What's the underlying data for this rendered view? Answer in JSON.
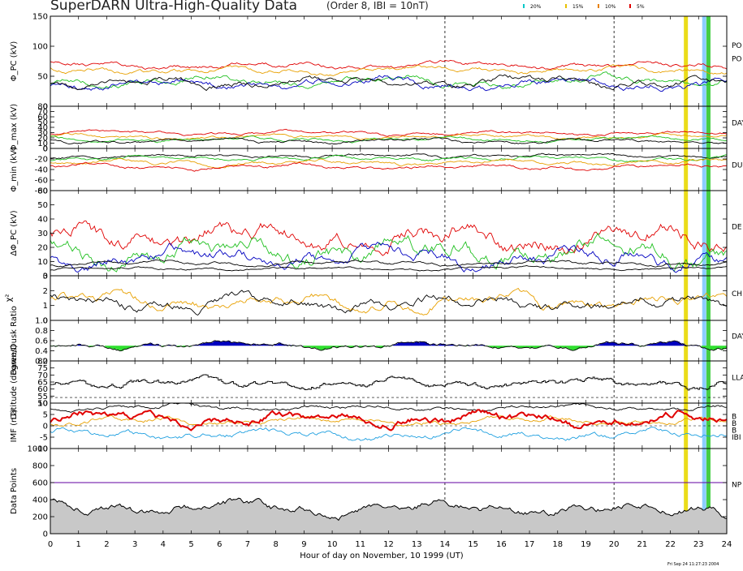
{
  "header": {
    "title": "SuperDARN Ultra-High-Quality Data",
    "subtitle": "(Order 8, IBI = 10nT)",
    "legend": [
      {
        "label": "20%",
        "color": "#00c8c8"
      },
      {
        "label": "15%",
        "color": "#e8c000"
      },
      {
        "label": "10%",
        "color": "#e88000"
      },
      {
        "label": "5%",
        "color": "#e00000"
      }
    ]
  },
  "footer": {
    "xlabel": "Hour of day on November, 10 1999 (UT)",
    "stamp": "Fri Sep 24 11:27:23 2004"
  },
  "chart_data": {
    "type": "line",
    "x_range": [
      0,
      24
    ],
    "x_ticks": [
      "0",
      "1",
      "2",
      "3",
      "4",
      "5",
      "6",
      "7",
      "8",
      "9",
      "10",
      "11",
      "12",
      "13",
      "14",
      "15",
      "16",
      "17",
      "18",
      "19",
      "20",
      "21",
      "22",
      "23",
      "24"
    ],
    "dashed_hours": [
      14,
      20
    ],
    "highlights": [
      {
        "hour": 22.55,
        "color": "#e8d800"
      },
      {
        "hour": 23.2,
        "color": "#7ec8ff"
      },
      {
        "hour": 23.35,
        "color": "#30c830"
      }
    ],
    "panels": [
      {
        "id": "phi-pc",
        "ylabel": "Φ_PC (kV)",
        "ylim": [
          0,
          150
        ],
        "yticks": [
          "0",
          "50",
          "100",
          "150"
        ],
        "right": [
          "PO",
          "PO"
        ],
        "series": [
          {
            "color": "#e00000",
            "base": 68,
            "amp": 7,
            "seed": 1
          },
          {
            "color": "#e8a000",
            "base": 60,
            "amp": 7,
            "seed": 2
          },
          {
            "color": "#20c020",
            "base": 43,
            "amp": 10,
            "seed": 3
          },
          {
            "color": "#0000c0",
            "base": 38,
            "amp": 11,
            "seed": 4
          },
          {
            "color": "#000000",
            "base": 40,
            "amp": 10,
            "seed": 5
          }
        ]
      },
      {
        "id": "phi-max",
        "ylabel": "Φ_max (kV)",
        "ylim": [
          0,
          80
        ],
        "yticks": [
          "0",
          "10",
          "20",
          "30",
          "40",
          "50",
          "60",
          "70",
          "80"
        ],
        "right": [
          "DAY"
        ],
        "series": [
          {
            "color": "#e00000",
            "base": 29,
            "amp": 5,
            "seed": 6
          },
          {
            "color": "#e8a000",
            "base": 22,
            "amp": 5,
            "seed": 7
          },
          {
            "color": "#20c020",
            "base": 17,
            "amp": 5,
            "seed": 8
          },
          {
            "color": "#000000",
            "base": 14,
            "amp": 5,
            "seed": 9
          }
        ]
      },
      {
        "id": "phi-min",
        "ylabel": "Φ_min (kV)",
        "ylim": [
          -80,
          0
        ],
        "yticks": [
          "0",
          "-20",
          "-40",
          "-60",
          "-80"
        ],
        "right": [
          "DU"
        ],
        "series": [
          {
            "color": "#000000",
            "base": -14,
            "amp": 5,
            "seed": 10
          },
          {
            "color": "#20c020",
            "base": -19,
            "amp": 5,
            "seed": 11
          },
          {
            "color": "#e8a000",
            "base": -27,
            "amp": 6,
            "seed": 12
          },
          {
            "color": "#e00000",
            "base": -35,
            "amp": 6,
            "seed": 13
          }
        ]
      },
      {
        "id": "delta-phi",
        "ylabel": "ΔΦ_PC (kV)",
        "ylim": [
          0,
          60
        ],
        "yticks": [
          "0",
          "10",
          "20",
          "30",
          "40",
          "50",
          "60"
        ],
        "right": [
          "DE"
        ],
        "series": [
          {
            "color": "#e00000",
            "base": 27,
            "amp": 11,
            "seed": 14
          },
          {
            "color": "#20c020",
            "base": 17,
            "amp": 11,
            "seed": 15
          },
          {
            "color": "#0000c0",
            "base": 13,
            "amp": 8,
            "seed": 16
          },
          {
            "color": "#000000",
            "base": 9,
            "amp": 2,
            "seed": 17
          },
          {
            "color": "#000000",
            "base": 5,
            "amp": 1.5,
            "seed": 18
          }
        ]
      },
      {
        "id": "chi",
        "ylabel": "χ²",
        "ylim": [
          0,
          3
        ],
        "yticks": [
          "0",
          "1",
          "2",
          "3"
        ],
        "right": [
          "CH"
        ],
        "series": [
          {
            "color": "#e8a000",
            "base": 1.2,
            "amp": 0.6,
            "seed": 19
          },
          {
            "color": "#000000",
            "base": 1.15,
            "amp": 0.6,
            "seed": 20
          }
        ]
      },
      {
        "id": "dawn-dusk",
        "ylabel": "Dawn/Dusk Ratio",
        "ylim": [
          0.2,
          1.0
        ],
        "yticks": [
          "0.2",
          "0.4",
          "0.6",
          "0.8",
          "1.0"
        ],
        "right": [
          "DAY"
        ],
        "ratio_ref": 0.5,
        "series": [
          {
            "color": "#000000",
            "base": 0.5,
            "amp": 0.08,
            "seed": 21,
            "fill_above": "#0000c0",
            "fill_below": "#30e030"
          }
        ]
      },
      {
        "id": "latitude",
        "ylabel": "Latitude (degrees)",
        "ylim": [
          50,
          80
        ],
        "yticks": [
          "50",
          "55",
          "60",
          "65",
          "70",
          "75",
          "80"
        ],
        "right": [
          "LLA"
        ],
        "dashed_y": 54,
        "series": [
          {
            "color": "#000000",
            "base": 64,
            "amp": 4,
            "seed": 22,
            "step": true
          }
        ]
      },
      {
        "id": "imf",
        "ylabel": "IMF (nT)",
        "ylim": [
          -10,
          10
        ],
        "yticks": [
          "10",
          "5",
          "0",
          "-5",
          "-10"
        ],
        "right": [
          "B",
          "B",
          "B",
          "IBI"
        ],
        "right_colors": [
          "#e00000",
          "#e8a000",
          "#20a0e0",
          "#000000"
        ],
        "dashed_y": 0,
        "series": [
          {
            "color": "#000000",
            "base": 8,
            "amp": 1.5,
            "seed": 23
          },
          {
            "color": "#e8a000",
            "base": 2,
            "amp": 2,
            "seed": 24
          },
          {
            "color": "#e00000",
            "base": 3,
            "amp": 3.5,
            "seed": 25,
            "width": 2
          },
          {
            "color": "#20a0e0",
            "base": -4,
            "amp": 2.5,
            "seed": 26
          }
        ]
      },
      {
        "id": "data-points",
        "ylabel": "Data Points",
        "ylim": [
          0,
          1000
        ],
        "yticks": [
          "0",
          "200",
          "400",
          "600",
          "800",
          "1000"
        ],
        "right": [
          "NP"
        ],
        "ref_line": 600,
        "series": [
          {
            "color": "#000000",
            "base": 300,
            "amp": 90,
            "seed": 27,
            "fill": "#c8c8c8"
          }
        ]
      }
    ]
  }
}
